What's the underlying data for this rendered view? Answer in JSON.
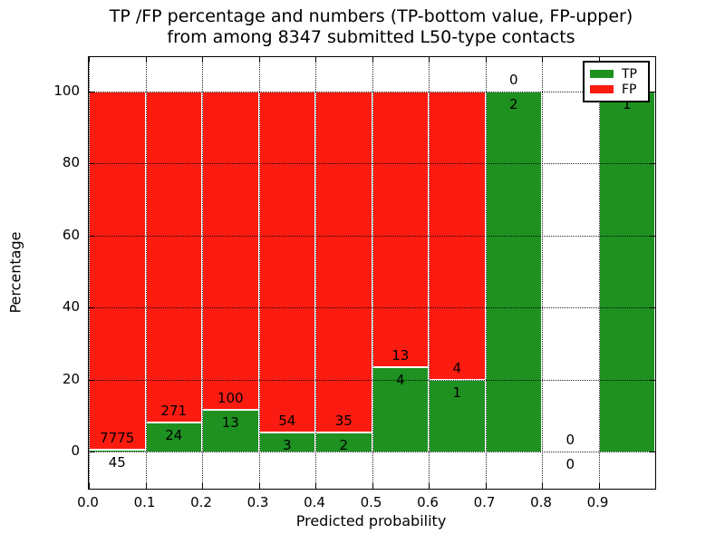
{
  "figure": {
    "title_line1": "TP /FP percentage and numbers (TP-bottom value, FP-upper)",
    "title_line2": "from among 8347 submitted L50-type contacts"
  },
  "axes": {
    "xlabel": "Predicted probability",
    "ylabel": "Percentage"
  },
  "legend": {
    "tp_label": "TP",
    "fp_label": "FP"
  },
  "colors": {
    "tp_green": "#1e9121",
    "fp_red": "#fb1b10",
    "grid": "#000000",
    "background": "#ffffff"
  },
  "chart_data": {
    "type": "bar",
    "stacked": true,
    "orientation": "vertical",
    "title": "TP /FP percentage and numbers (TP-bottom value, FP-upper) from among 8347 submitted L50-type contacts",
    "xlabel": "Predicted probability",
    "ylabel": "Percentage",
    "x_tick_labels": [
      "0.0",
      "0.1",
      "0.2",
      "0.3",
      "0.4",
      "0.5",
      "0.6",
      "0.7",
      "0.8",
      "0.9"
    ],
    "y_ticks": [
      0,
      20,
      40,
      60,
      80,
      100
    ],
    "xlim": [
      0.0,
      1.0
    ],
    "ylim": [
      -10.5,
      110
    ],
    "grid": "dotted, both axes",
    "legend_position": "upper right",
    "legend_entries": [
      "TP",
      "FP"
    ],
    "bar_label_note": "TP count below segment boundary, FP count above segment boundary",
    "bins": [
      {
        "x_start": 0.0,
        "x_end": 0.1,
        "tp": 45,
        "fp": 7775
      },
      {
        "x_start": 0.1,
        "x_end": 0.2,
        "tp": 24,
        "fp": 271
      },
      {
        "x_start": 0.2,
        "x_end": 0.3,
        "tp": 13,
        "fp": 100
      },
      {
        "x_start": 0.3,
        "x_end": 0.4,
        "tp": 3,
        "fp": 54
      },
      {
        "x_start": 0.4,
        "x_end": 0.5,
        "tp": 2,
        "fp": 35
      },
      {
        "x_start": 0.5,
        "x_end": 0.6,
        "tp": 4,
        "fp": 13
      },
      {
        "x_start": 0.6,
        "x_end": 0.7,
        "tp": 1,
        "fp": 4
      },
      {
        "x_start": 0.7,
        "x_end": 0.8,
        "tp": 2,
        "fp": 0
      },
      {
        "x_start": 0.8,
        "x_end": 0.9,
        "tp": 0,
        "fp": 0
      },
      {
        "x_start": 0.9,
        "x_end": 1.0,
        "tp": 1,
        "fp": null
      }
    ],
    "series": [
      {
        "name": "TP",
        "color": "#1e9121"
      },
      {
        "name": "FP",
        "color": "#fb1b10"
      }
    ]
  }
}
